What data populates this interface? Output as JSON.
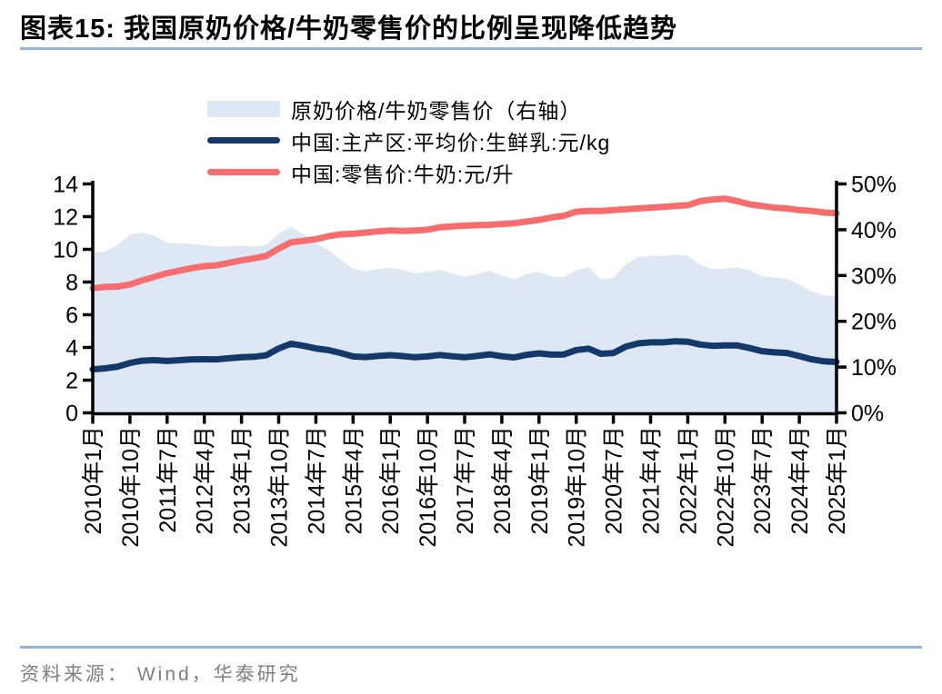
{
  "page": {
    "title": "图表15:  我国原奶价格/牛奶零售价的比例呈现降低趋势",
    "source": "资料来源： Wind，华泰研究"
  },
  "colors": {
    "title_rule": "#95b3d7",
    "axis": "#000000",
    "source_text": "#7f7f7f",
    "area_fill": "#dde8f4",
    "raw_milk_line": "#15386b",
    "retail_milk_line": "#f76c6c"
  },
  "chart_data": {
    "type": "line",
    "subtype": "combo-area-line-dual-axis",
    "title": "我国原奶价格/牛奶零售价的比例呈现降低趋势",
    "grid": false,
    "legend_position": "top-left",
    "axes": {
      "left": {
        "min": 0,
        "max": 14,
        "ticks": [
          0,
          2,
          4,
          6,
          8,
          10,
          12,
          14
        ]
      },
      "right": {
        "min": 0,
        "max": 50,
        "ticks": [
          0,
          10,
          20,
          30,
          40,
          50
        ],
        "suffix": "%"
      }
    },
    "x_tick_labels": [
      "2010年1月",
      "2010年10月",
      "2011年7月",
      "2012年4月",
      "2013年1月",
      "2013年10月",
      "2014年7月",
      "2015年4月",
      "2016年1月",
      "2016年10月",
      "2017年7月",
      "2018年4月",
      "2019年1月",
      "2019年10月",
      "2020年7月",
      "2021年4月",
      "2022年1月",
      "2022年10月",
      "2023年7月",
      "2024年4月",
      "2025年1月"
    ],
    "x": [
      "2010-01",
      "2010-04",
      "2010-07",
      "2010-10",
      "2011-01",
      "2011-04",
      "2011-07",
      "2011-10",
      "2012-01",
      "2012-04",
      "2012-07",
      "2012-10",
      "2013-01",
      "2013-04",
      "2013-07",
      "2013-10",
      "2014-01",
      "2014-04",
      "2014-07",
      "2014-10",
      "2015-01",
      "2015-04",
      "2015-07",
      "2015-10",
      "2016-01",
      "2016-04",
      "2016-07",
      "2016-10",
      "2017-01",
      "2017-04",
      "2017-07",
      "2017-10",
      "2018-01",
      "2018-04",
      "2018-07",
      "2018-10",
      "2019-01",
      "2019-04",
      "2019-07",
      "2019-10",
      "2020-01",
      "2020-04",
      "2020-07",
      "2020-10",
      "2021-01",
      "2021-04",
      "2021-07",
      "2021-10",
      "2022-01",
      "2022-04",
      "2022-07",
      "2022-10",
      "2023-01",
      "2023-04",
      "2023-07",
      "2023-10",
      "2024-01",
      "2024-04",
      "2024-07",
      "2024-10",
      "2025-01"
    ],
    "series": [
      {
        "name": "原奶价格/牛奶零售价（右轴）",
        "kind": "area",
        "axis": "right",
        "unit": "%",
        "color": "#dde8f4",
        "values": [
          34.9,
          35.3,
          36.7,
          38.9,
          39.4,
          38.7,
          37.1,
          37.0,
          36.9,
          36.6,
          36.3,
          36.4,
          36.5,
          36.3,
          36.7,
          39.2,
          40.6,
          39.0,
          37.1,
          35.6,
          33.5,
          31.5,
          30.9,
          31.4,
          31.7,
          31.2,
          30.5,
          30.8,
          31.2,
          30.4,
          29.7,
          30.3,
          31.1,
          30.0,
          29.2,
          30.3,
          30.8,
          29.8,
          29.6,
          31.2,
          31.8,
          29.2,
          29.5,
          32.5,
          34.0,
          34.3,
          34.2,
          34.6,
          34.3,
          32.3,
          31.4,
          31.5,
          31.8,
          31.1,
          29.8,
          29.5,
          29.3,
          28.0,
          26.5,
          25.7,
          25.5
        ]
      },
      {
        "name": "中国:主产区:平均价:生鲜乳:元/kg",
        "kind": "line",
        "axis": "left",
        "unit": "元/kg",
        "color": "#15386b",
        "values": [
          2.66,
          2.72,
          2.83,
          3.05,
          3.19,
          3.22,
          3.17,
          3.22,
          3.27,
          3.28,
          3.27,
          3.34,
          3.4,
          3.43,
          3.52,
          3.94,
          4.23,
          4.1,
          3.94,
          3.84,
          3.66,
          3.45,
          3.41,
          3.48,
          3.53,
          3.47,
          3.4,
          3.45,
          3.54,
          3.46,
          3.4,
          3.48,
          3.58,
          3.46,
          3.39,
          3.55,
          3.64,
          3.56,
          3.57,
          3.84,
          3.93,
          3.61,
          3.66,
          4.05,
          4.25,
          4.31,
          4.31,
          4.38,
          4.35,
          4.18,
          4.1,
          4.12,
          4.12,
          3.96,
          3.77,
          3.7,
          3.66,
          3.47,
          3.27,
          3.15,
          3.11
        ]
      },
      {
        "name": "中国:零售价:牛奶:元/升",
        "kind": "line",
        "axis": "left",
        "unit": "元/升",
        "color": "#f76c6c",
        "values": [
          7.62,
          7.7,
          7.72,
          7.85,
          8.1,
          8.32,
          8.54,
          8.7,
          8.85,
          8.97,
          9.02,
          9.18,
          9.32,
          9.45,
          9.6,
          10.05,
          10.43,
          10.52,
          10.62,
          10.8,
          10.92,
          10.95,
          11.02,
          11.1,
          11.15,
          11.12,
          11.15,
          11.2,
          11.35,
          11.4,
          11.45,
          11.48,
          11.5,
          11.55,
          11.6,
          11.7,
          11.8,
          11.95,
          12.05,
          12.3,
          12.35,
          12.35,
          12.4,
          12.45,
          12.5,
          12.55,
          12.6,
          12.65,
          12.7,
          12.95,
          13.05,
          13.1,
          12.95,
          12.75,
          12.65,
          12.55,
          12.5,
          12.4,
          12.35,
          12.25,
          12.2
        ]
      }
    ]
  }
}
